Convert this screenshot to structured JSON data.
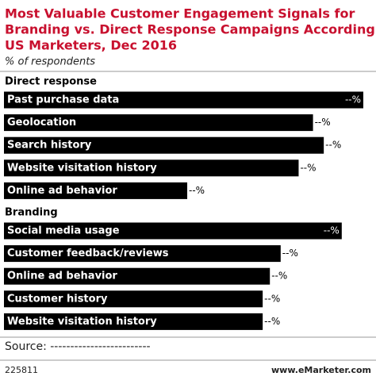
{
  "chart_data": {
    "type": "bar",
    "orientation": "horizontal",
    "title": [
      "Most Valuable Customer Engagement Signals for",
      "Branding vs. Direct Response Campaigns According to",
      "US Marketers, Dec 2016"
    ],
    "subtitle": "% of respondents",
    "color": "#000000",
    "groups": [
      {
        "name": "Direct response",
        "categories": [
          "Past purchase data",
          "Geolocation",
          "Search history",
          "Website visitation history",
          "Online ad behavior"
        ],
        "values": [
          100,
          86,
          89,
          82,
          51
        ],
        "value_labels": [
          "--%",
          "--%",
          "--%",
          "--%",
          "--%"
        ]
      },
      {
        "name": "Branding",
        "categories": [
          "Social media usage",
          "Customer feedback/reviews",
          "Online ad behavior",
          "Customer history",
          "Website visitation history"
        ],
        "values": [
          94,
          77,
          74,
          72,
          72
        ],
        "value_labels": [
          "--%",
          "--%",
          "--%",
          "--%",
          "--%"
        ]
      }
    ],
    "source": "Source: -------------------------",
    "chart_id": "225811",
    "publisher": "www.eMarketer.com"
  }
}
